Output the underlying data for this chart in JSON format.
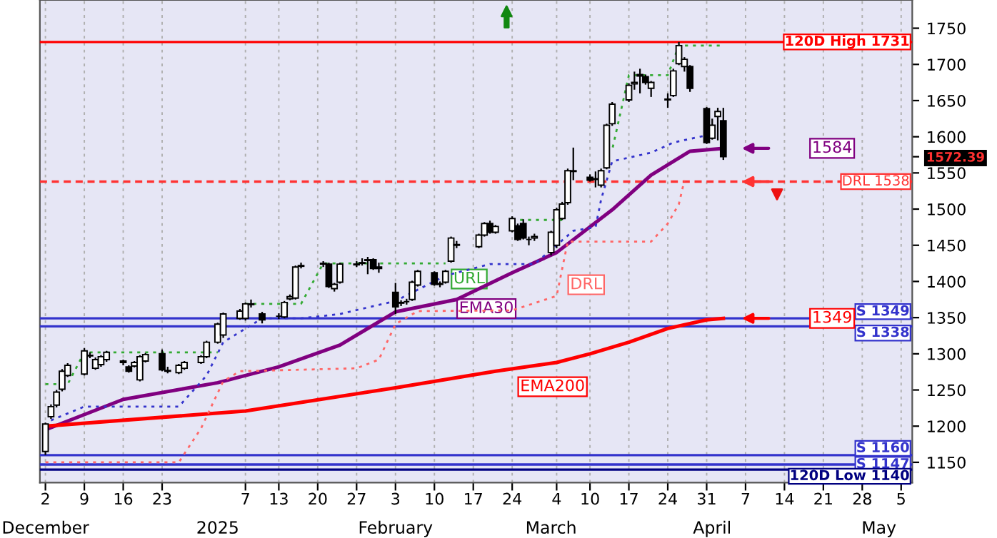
{
  "chart_data": {
    "type": "candlestick",
    "x": [
      "2024-12-02",
      "2024-12-03",
      "2024-12-04",
      "2024-12-05",
      "2024-12-06",
      "2024-12-09",
      "2024-12-10",
      "2024-12-11",
      "2024-12-12",
      "2024-12-13",
      "2024-12-16",
      "2024-12-17",
      "2024-12-18",
      "2024-12-19",
      "2024-12-20",
      "2024-12-23",
      "2024-12-24",
      "2024-12-26",
      "2024-12-27",
      "2024-12-30",
      "2024-12-31",
      "2025-01-02",
      "2025-01-03",
      "2025-01-06",
      "2025-01-07",
      "2025-01-08",
      "2025-01-10",
      "2025-01-13",
      "2025-01-14",
      "2025-01-15",
      "2025-01-16",
      "2025-01-17",
      "2025-01-21",
      "2025-01-22",
      "2025-01-23",
      "2025-01-24",
      "2025-01-27",
      "2025-01-28",
      "2025-01-29",
      "2025-01-30",
      "2025-01-31",
      "2025-02-03",
      "2025-02-04",
      "2025-02-05",
      "2025-02-06",
      "2025-02-07",
      "2025-02-10",
      "2025-02-11",
      "2025-02-12",
      "2025-02-13",
      "2025-02-14",
      "2025-02-18",
      "2025-02-19",
      "2025-02-20",
      "2025-02-21",
      "2025-02-24",
      "2025-02-25",
      "2025-02-26",
      "2025-02-27",
      "2025-02-28",
      "2025-03-03",
      "2025-03-04",
      "2025-03-05",
      "2025-03-06",
      "2025-03-07",
      "2025-03-10",
      "2025-03-11",
      "2025-03-12",
      "2025-03-13",
      "2025-03-14",
      "2025-03-17",
      "2025-03-18",
      "2025-03-19",
      "2025-03-20",
      "2025-03-21",
      "2025-03-24",
      "2025-03-25",
      "2025-03-26",
      "2025-03-27",
      "2025-03-28",
      "2025-03-31",
      "2025-04-01",
      "2025-04-02",
      "2025-04-03"
    ],
    "ohlc": [
      [
        1165,
        1205,
        1160,
        1203
      ],
      [
        1213,
        1230,
        1210,
        1227
      ],
      [
        1229,
        1250,
        1226,
        1247
      ],
      [
        1251,
        1279,
        1248,
        1276
      ],
      [
        1270,
        1287,
        1268,
        1284
      ],
      [
        1272,
        1308,
        1270,
        1304
      ],
      [
        1298,
        1302,
        1294,
        1297
      ],
      [
        1280,
        1295,
        1278,
        1292
      ],
      [
        1285,
        1298,
        1282,
        1296
      ],
      [
        1292,
        1304,
        1289,
        1302
      ],
      [
        1290,
        1292,
        1284,
        1288
      ],
      [
        1282,
        1284,
        1274,
        1276
      ],
      [
        1283,
        1290,
        1281,
        1288
      ],
      [
        1264,
        1298,
        1262,
        1296
      ],
      [
        1290,
        1301,
        1288,
        1299
      ],
      [
        1300,
        1306,
        1276,
        1278
      ],
      [
        1277,
        1282,
        1273,
        1276
      ],
      [
        1274,
        1286,
        1272,
        1284
      ],
      [
        1280,
        1290,
        1278,
        1288
      ],
      [
        1288,
        1298,
        1286,
        1296
      ],
      [
        1296,
        1318,
        1294,
        1316
      ],
      [
        1316,
        1343,
        1314,
        1341
      ],
      [
        1326,
        1357,
        1322,
        1355
      ],
      [
        1349,
        1362,
        1347,
        1359
      ],
      [
        1349,
        1371,
        1346,
        1369
      ],
      [
        1368,
        1375,
        1364,
        1369
      ],
      [
        1355,
        1358,
        1342,
        1347
      ],
      [
        1352,
        1356,
        1348,
        1352
      ],
      [
        1351,
        1373,
        1349,
        1371
      ],
      [
        1376,
        1382,
        1374,
        1379
      ],
      [
        1377,
        1422,
        1375,
        1420
      ],
      [
        1421,
        1426,
        1418,
        1422
      ],
      [
        1424,
        1428,
        1420,
        1425
      ],
      [
        1424,
        1426,
        1391,
        1393
      ],
      [
        1390,
        1398,
        1386,
        1396
      ],
      [
        1399,
        1426,
        1397,
        1424
      ],
      [
        1423,
        1428,
        1420,
        1424
      ],
      [
        1425,
        1432,
        1422,
        1426
      ],
      [
        1429,
        1434,
        1410,
        1430
      ],
      [
        1430,
        1432,
        1416,
        1418
      ],
      [
        1420,
        1426,
        1412,
        1418
      ],
      [
        1385,
        1398,
        1355,
        1365
      ],
      [
        1370,
        1374,
        1366,
        1371
      ],
      [
        1372,
        1376,
        1368,
        1372
      ],
      [
        1375,
        1401,
        1373,
        1399
      ],
      [
        1395,
        1416,
        1393,
        1414
      ],
      [
        1412,
        1414,
        1394,
        1396
      ],
      [
        1396,
        1400,
        1392,
        1397
      ],
      [
        1399,
        1416,
        1397,
        1414
      ],
      [
        1428,
        1462,
        1426,
        1460
      ],
      [
        1450,
        1456,
        1446,
        1451
      ],
      [
        1448,
        1466,
        1446,
        1464
      ],
      [
        1464,
        1482,
        1462,
        1480
      ],
      [
        1480,
        1484,
        1466,
        1468
      ],
      [
        1468,
        1478,
        1466,
        1476
      ],
      [
        1470,
        1490,
        1468,
        1487
      ],
      [
        1477,
        1480,
        1456,
        1458
      ],
      [
        1480,
        1486,
        1458,
        1460
      ],
      [
        1458,
        1462,
        1450,
        1458
      ],
      [
        1460,
        1466,
        1456,
        1462
      ],
      [
        1440,
        1470,
        1436,
        1468
      ],
      [
        1450,
        1502,
        1446,
        1499
      ],
      [
        1487,
        1510,
        1485,
        1507
      ],
      [
        1509,
        1556,
        1506,
        1553
      ],
      [
        1552,
        1585,
        1540,
        1553
      ],
      [
        1544,
        1548,
        1538,
        1540
      ],
      [
        1541,
        1552,
        1530,
        1542
      ],
      [
        1533,
        1556,
        1530,
        1553
      ],
      [
        1557,
        1618,
        1555,
        1616
      ],
      [
        1618,
        1648,
        1615,
        1645
      ],
      [
        1651,
        1674,
        1648,
        1671
      ],
      [
        1673,
        1690,
        1665,
        1675
      ],
      [
        1684,
        1694,
        1660,
        1686
      ],
      [
        1683,
        1686,
        1672,
        1675
      ],
      [
        1667,
        1677,
        1655,
        1675
      ],
      [
        1652,
        1660,
        1640,
        1651
      ],
      [
        1657,
        1694,
        1655,
        1691
      ],
      [
        1701,
        1731,
        1699,
        1726
      ],
      [
        1697,
        1710,
        1690,
        1707
      ],
      [
        1697,
        1699,
        1662,
        1667
      ],
      [
        1639,
        1641,
        1590,
        1592
      ],
      [
        1598,
        1625,
        1596,
        1616
      ],
      [
        1628,
        1640,
        1595,
        1635
      ],
      [
        1622,
        1640,
        1568,
        1572.39
      ]
    ],
    "series": [
      {
        "type": "line",
        "color": "#800080",
        "line_style": "solid",
        "x": [
          "2024-12-02",
          "2024-12-16",
          "2025-01-02",
          "2025-01-13",
          "2025-01-24",
          "2025-02-03",
          "2025-02-14",
          "2025-02-24",
          "2025-03-04",
          "2025-03-14",
          "2025-03-21",
          "2025-03-28",
          "2025-04-03"
        ],
        "values": [
          1195,
          1237,
          1260,
          1282,
          1312,
          1358,
          1375,
          1412,
          1440,
          1499,
          1547,
          1580,
          1584
        ]
      },
      {
        "type": "line",
        "color": "#ff0000",
        "line_style": "solid",
        "x": [
          "2024-12-02",
          "2025-01-07",
          "2025-02-03",
          "2025-02-21",
          "2025-03-04",
          "2025-03-10",
          "2025-03-17",
          "2025-03-24",
          "2025-03-31",
          "2025-04-03"
        ],
        "values": [
          1200,
          1221,
          1253,
          1276,
          1288,
          1300,
          1316,
          1335,
          1347,
          1349
        ]
      },
      {
        "type": "line",
        "color": "#3333cc",
        "line_style": "dotted",
        "x": [
          "2024-12-03",
          "2024-12-09",
          "2024-12-26",
          "2024-12-31",
          "2025-01-03",
          "2025-01-10",
          "2025-01-17",
          "2025-01-24",
          "2025-02-03",
          "2025-02-12",
          "2025-02-20",
          "2025-02-28",
          "2025-03-07",
          "2025-03-11",
          "2025-03-12",
          "2025-03-14",
          "2025-03-21",
          "2025-03-25",
          "2025-03-31"
        ],
        "values": [
          1208,
          1227,
          1227,
          1270,
          1316,
          1349,
          1349,
          1355,
          1373,
          1408,
          1424,
          1424,
          1470,
          1475,
          1513,
          1566,
          1578,
          1592,
          1602
        ]
      },
      {
        "type": "line",
        "color": "#ff6666",
        "line_style": "dotted",
        "x": [
          "2024-12-02",
          "2024-12-26",
          "2024-12-30",
          "2025-01-03",
          "2025-01-06",
          "2025-01-17",
          "2025-01-27",
          "2025-01-31",
          "2025-02-03",
          "2025-02-07",
          "2025-02-24",
          "2025-03-04",
          "2025-03-06",
          "2025-03-21",
          "2025-03-24",
          "2025-03-26",
          "2025-03-27"
        ],
        "values": [
          1150,
          1150,
          1197,
          1262,
          1276,
          1278,
          1280,
          1292,
          1341,
          1359,
          1360,
          1380,
          1455,
          1455,
          1480,
          1507,
          1540
        ]
      },
      {
        "type": "line",
        "color": "#33aa33",
        "line_style": "dotted",
        "x": [
          "2024-12-02",
          "2024-12-06",
          "2024-12-09",
          "2025-01-02",
          "2025-01-03",
          "2025-01-07",
          "2025-01-17",
          "2025-01-21",
          "2025-02-12",
          "2025-02-13",
          "2025-02-24",
          "2025-03-05",
          "2025-03-06",
          "2025-03-13",
          "2025-03-14",
          "2025-03-17",
          "2025-03-24",
          "2025-03-26",
          "2025-04-03"
        ],
        "values": [
          1258,
          1258,
          1302,
          1302,
          null,
          1369,
          1369,
          1425,
          1425,
          null,
          1485,
          1485,
          null,
          1582,
          1582,
          1685,
          1685,
          1726,
          1726
        ]
      }
    ],
    "xlim": [
      "2024-12-01",
      "2025-05-07"
    ],
    "xticks": [
      {
        "value": "2024-12-02",
        "label": "2"
      },
      {
        "value": "2024-12-09",
        "label": "9"
      },
      {
        "value": "2024-12-16",
        "label": "16"
      },
      {
        "value": "2024-12-23",
        "label": "23"
      },
      {
        "value": "2025-01-07",
        "label": "7"
      },
      {
        "value": "2025-01-13",
        "label": "13"
      },
      {
        "value": "2025-01-20",
        "label": "20"
      },
      {
        "value": "2025-01-27",
        "label": "27"
      },
      {
        "value": "2025-02-03",
        "label": "3"
      },
      {
        "value": "2025-02-10",
        "label": "10"
      },
      {
        "value": "2025-02-17",
        "label": "17"
      },
      {
        "value": "2025-02-24",
        "label": "24"
      },
      {
        "value": "2025-03-04",
        "label": "4"
      },
      {
        "value": "2025-03-10",
        "label": "10"
      },
      {
        "value": "2025-03-17",
        "label": "17"
      },
      {
        "value": "2025-03-24",
        "label": "24"
      },
      {
        "value": "2025-03-31",
        "label": "31"
      },
      {
        "value": "2025-04-07",
        "label": "7"
      },
      {
        "value": "2025-04-14",
        "label": "14"
      },
      {
        "value": "2025-04-21",
        "label": "21"
      },
      {
        "value": "2025-04-28",
        "label": "28"
      },
      {
        "value": "2025-05-05",
        "label": "5"
      }
    ],
    "ylim": [
      1122,
      1789
    ],
    "yticks": [
      1150,
      1200,
      1250,
      1300,
      1350,
      1400,
      1450,
      1500,
      1550,
      {
        "value": 1572.39,
        "label": "1572.39"
      },
      1600,
      1650,
      1700,
      1750
    ],
    "grid": "x",
    "ref_lines": [
      {
        "axis": "y",
        "value": 1731,
        "label": "120D High 1731",
        "color": "#ff0000",
        "line_style": "solid"
      },
      {
        "axis": "y",
        "value": 1538,
        "label": "DRL 1538",
        "color": "#ff3333",
        "line_style": "dashed"
      },
      {
        "axis": "y",
        "value": 1349,
        "label": "S 1349",
        "color": "#3333cc",
        "line_style": "solid"
      },
      {
        "axis": "y",
        "value": 1338,
        "label": "S 1338",
        "color": "#3333cc",
        "line_style": "solid"
      },
      {
        "axis": "y",
        "value": 1160,
        "label": "S 1160",
        "color": "#3333cc",
        "line_style": "solid"
      },
      {
        "axis": "y",
        "value": 1147,
        "label": "S 1147",
        "color": "#3333cc",
        "line_style": "solid"
      },
      {
        "axis": "y",
        "value": 1140,
        "label": "120D Low 1140",
        "color": "#000080",
        "line_style": "solid"
      }
    ],
    "annotations": [
      {
        "text": "URL",
        "x": "2025-02-12",
        "y": 1425
      },
      {
        "text": "EMA30",
        "x": "2025-02-13",
        "y": 1384
      },
      {
        "text": "DRL",
        "x": "2025-03-05",
        "y": 1417
      },
      {
        "text": "EMA200",
        "x": "2025-02-24",
        "y": 1276
      },
      {
        "text": "1584",
        "y": 1584
      },
      {
        "text": "1349",
        "y": 1349
      }
    ],
    "x2lim": [
      "2024-12-01",
      "2025-05-07"
    ],
    "x2ticks": [
      {
        "value": "2024-12-02",
        "label": "December"
      },
      {
        "value": "2025-01-02",
        "label": "2025"
      },
      {
        "value": "2025-02-03",
        "label": "February"
      },
      {
        "value": "2025-03-03",
        "label": "March"
      },
      {
        "value": "2025-04-01",
        "label": "April"
      },
      {
        "value": "2025-05-01",
        "label": "May"
      }
    ]
  }
}
